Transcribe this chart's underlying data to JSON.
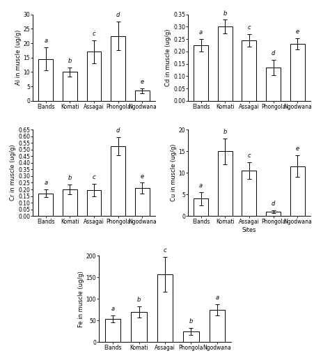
{
  "sites": [
    "Elands",
    "Komati",
    "Assagai",
    "Phongola",
    "Ngodwana"
  ],
  "Al": {
    "values": [
      14.5,
      10.0,
      17.0,
      22.5,
      3.5
    ],
    "errors": [
      4.0,
      1.5,
      4.0,
      5.0,
      0.8
    ],
    "ylabel": "Al in muscle (ug/g)",
    "ylim": [
      0,
      30
    ],
    "yticks": [
      0,
      5,
      10,
      15,
      20,
      25,
      30
    ],
    "letters": [
      "a",
      "b",
      "c",
      "d",
      "e"
    ]
  },
  "Cd": {
    "values": [
      0.225,
      0.3,
      0.245,
      0.135,
      0.23
    ],
    "errors": [
      0.025,
      0.028,
      0.025,
      0.03,
      0.022
    ],
    "ylabel": "Cd in muscle (ug/g)",
    "ylim": [
      0,
      0.35
    ],
    "yticks": [
      0.0,
      0.05,
      0.1,
      0.15,
      0.2,
      0.25,
      0.3,
      0.35
    ],
    "letters": [
      "a",
      "b",
      "c",
      "d",
      "e"
    ]
  },
  "Cr": {
    "values": [
      0.17,
      0.2,
      0.195,
      0.525,
      0.21
    ],
    "errors": [
      0.028,
      0.035,
      0.048,
      0.07,
      0.04
    ],
    "ylabel": "Cr in muscle (ug/g)",
    "ylim": [
      0,
      0.65
    ],
    "yticks": [
      0.0,
      0.05,
      0.1,
      0.15,
      0.2,
      0.25,
      0.3,
      0.35,
      0.4,
      0.45,
      0.5,
      0.55,
      0.6,
      0.65
    ],
    "letters": [
      "a",
      "b",
      "c",
      "d",
      "e"
    ]
  },
  "Cu": {
    "values": [
      4.0,
      15.0,
      10.5,
      1.0,
      11.5
    ],
    "errors": [
      1.5,
      3.0,
      2.0,
      0.3,
      2.5
    ],
    "ylabel": "Cu in muscle (ug/g)",
    "ylim": [
      0,
      20
    ],
    "yticks": [
      0,
      5,
      10,
      15,
      20
    ],
    "xlabel": "Sites",
    "letters": [
      "a",
      "b",
      "c",
      "d",
      "e"
    ]
  },
  "Fe": {
    "values": [
      53,
      70,
      157,
      25,
      75
    ],
    "errors": [
      8,
      13,
      40,
      8,
      13
    ],
    "ylabel": "Fe in muscle (ug/g)",
    "ylim": [
      0,
      200
    ],
    "yticks": [
      0,
      50,
      100,
      150,
      200
    ],
    "letters": [
      "a",
      "b",
      "c",
      "b",
      "a"
    ]
  },
  "bar_color": "#ffffff",
  "bar_edgecolor": "#000000",
  "bar_width": 0.6,
  "capsize": 2,
  "fontsize_label": 6,
  "fontsize_tick": 5.5,
  "fontsize_letter": 6
}
